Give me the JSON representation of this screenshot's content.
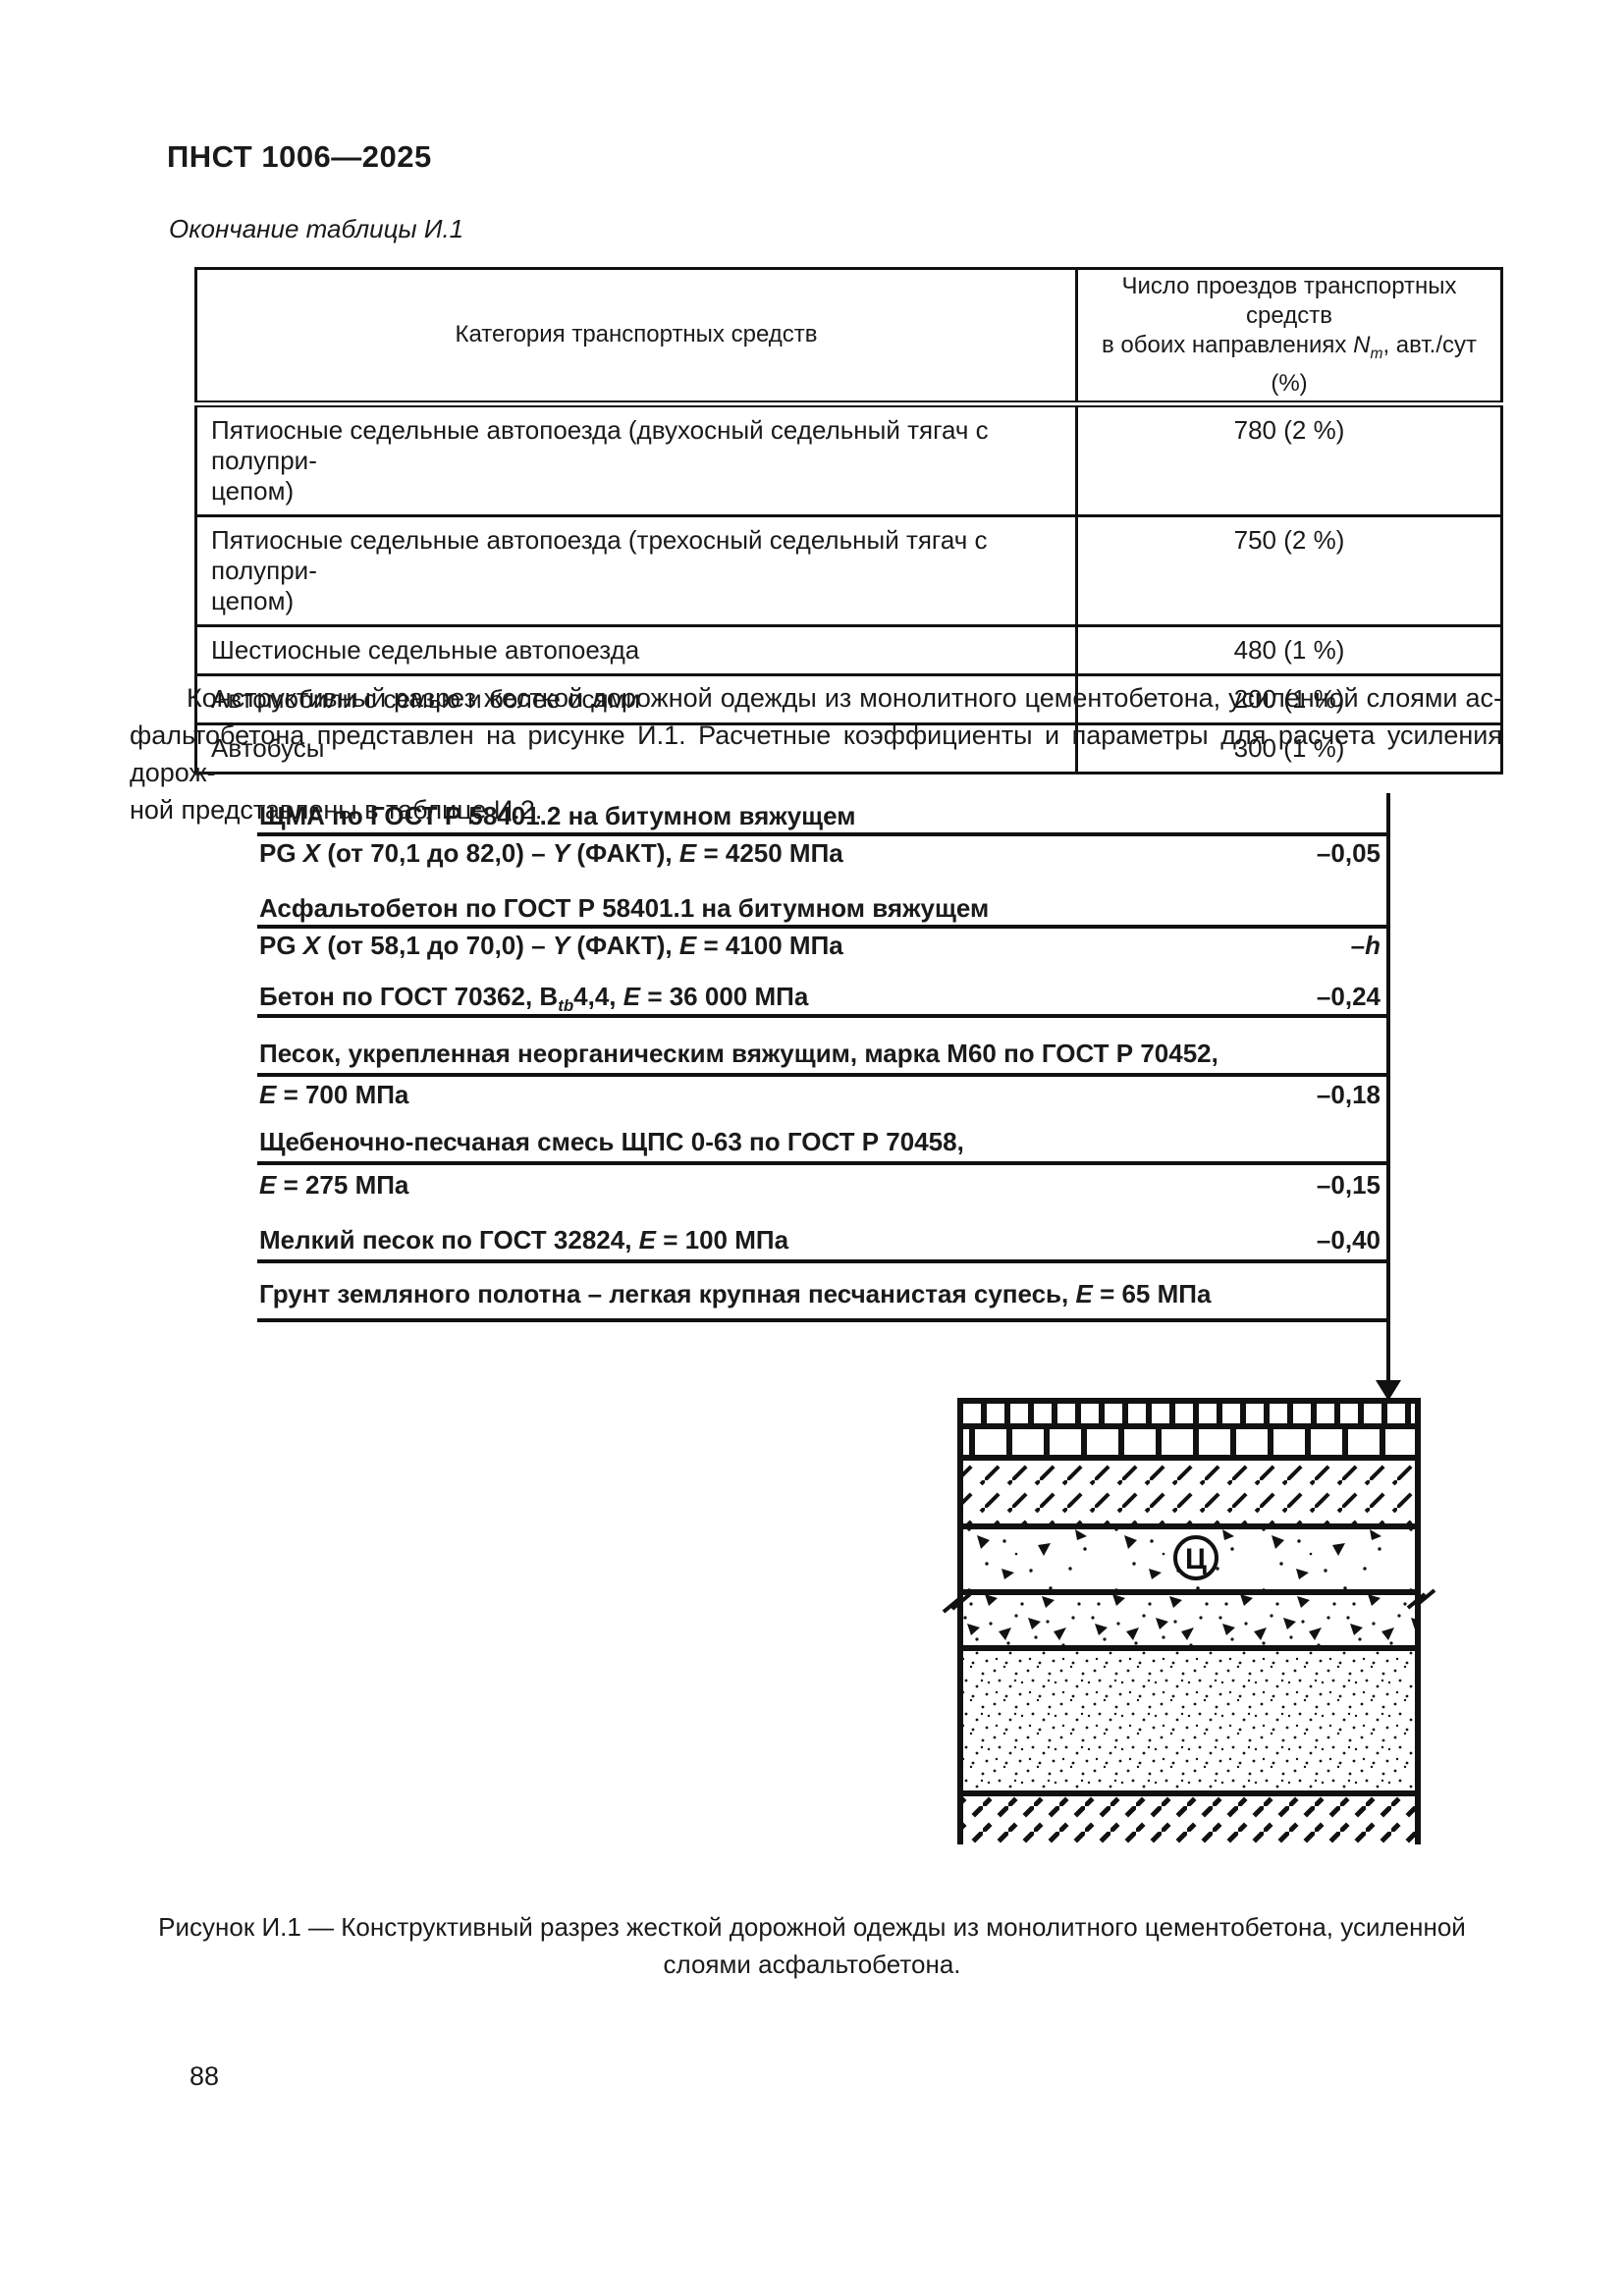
{
  "page": {
    "doc_code": "ПНСТ 1006—2025",
    "continuation_label": "Окончание таблицы И.1",
    "page_number": "88"
  },
  "table": {
    "col1_header": "Категория транспортных средств",
    "col2_header_segments": [
      {
        "t": "Число проездов транспортных средств"
      },
      {
        "br": true
      },
      {
        "t": "в обоих направлениях "
      },
      {
        "t": "N",
        "i": true
      },
      {
        "t": "m",
        "i": true,
        "sub": true
      },
      {
        "t": ", авт./сут (%)"
      }
    ],
    "rows": [
      {
        "category": [
          "Пятиосные седельные автопоезда (двухосный седельный тягач с полупри-",
          "цепом)"
        ],
        "value": "780 (2 %)"
      },
      {
        "category": [
          "Пятиосные седельные автопоезда (трехосный седельный тягач с полупри-",
          "цепом)"
        ],
        "value": "750 (2 %)"
      },
      {
        "category": [
          "Шестиосные седельные автопоезда"
        ],
        "value": "480 (1 %)"
      },
      {
        "category": [
          "Автомобили с семью и более осями"
        ],
        "value": "200 (1 %)"
      },
      {
        "category": [
          "Автобусы"
        ],
        "value": "300 (1 %)"
      }
    ]
  },
  "paragraph": {
    "line1": "Конструктивный разрез жесткой дорожной одежды из монолитного цементобетона, усиленной слоями ас-",
    "line2": "фальтобетона представлен на рисунке И.1. Расчетные коэффициенты и параметры для расчета усиления дорож-",
    "line3": "ной представлены в таблице И.2."
  },
  "diagram": {
    "lines": [
      {
        "segments": [
          {
            "t": "ЩМА по ГОСТ Р 58401.2 на битумном вяжущем"
          }
        ]
      },
      {
        "segments": [
          {
            "t": "PG "
          },
          {
            "t": "X",
            "i": true
          },
          {
            "t": " (от 70,1 до 82,0) – "
          },
          {
            "t": "Y",
            "i": true
          },
          {
            "t": " (ФАКТ), "
          },
          {
            "t": "E",
            "i": true
          },
          {
            "t": " = 4250 МПа"
          }
        ],
        "depth": [
          {
            "t": "–0,05"
          }
        ]
      },
      {
        "segments": [
          {
            "t": "Асфальтобетон по ГОСТ Р 58401.1 на битумном вяжущем"
          }
        ]
      },
      {
        "segments": [
          {
            "t": "PG "
          },
          {
            "t": "X",
            "i": true
          },
          {
            "t": " (от 58,1 до 70,0) – "
          },
          {
            "t": "Y",
            "i": true
          },
          {
            "t": " (ФАКТ), "
          },
          {
            "t": "E",
            "i": true
          },
          {
            "t": " = 4100 МПа"
          }
        ],
        "depth": [
          {
            "t": "–"
          },
          {
            "t": "h",
            "i": true
          }
        ]
      },
      {
        "segments": [
          {
            "t": "Бетон по ГОСТ 70362, В"
          },
          {
            "t": "tb",
            "i": true,
            "sub": true
          },
          {
            "t": "4,4, "
          },
          {
            "t": "E",
            "i": true
          },
          {
            "t": " = 36 000 МПа"
          }
        ],
        "depth": [
          {
            "t": "–0,24"
          }
        ]
      },
      {
        "segments": [
          {
            "t": "Песок, укрепленная неорганическим вяжущим, марка М60 по ГОСТ Р 70452,"
          }
        ]
      },
      {
        "segments": [
          {
            "t": "E",
            "i": true
          },
          {
            "t": " = 700 МПа"
          }
        ],
        "depth": [
          {
            "t": "–0,18"
          }
        ]
      },
      {
        "segments": [
          {
            "t": "Щебеночно-песчаная смесь ЩПС 0-63 по ГОСТ Р 70458,"
          }
        ]
      },
      {
        "segments": [
          {
            "t": "E",
            "i": true
          },
          {
            "t": " = 275 МПа"
          }
        ],
        "depth": [
          {
            "t": "–0,15"
          }
        ]
      },
      {
        "segments": [
          {
            "t": "Мелкий песок по ГОСТ 32824, "
          },
          {
            "t": "E",
            "i": true
          },
          {
            "t": " = 100 МПа"
          }
        ],
        "depth": [
          {
            "t": "–0,40"
          }
        ]
      },
      {
        "segments": [
          {
            "t": "Грунт земляного полотна – легкая крупная песчанистая супесь, "
          },
          {
            "t": "E",
            "i": true
          },
          {
            "t": " = 65 МПа"
          }
        ]
      }
    ]
  },
  "figure": {
    "cement_symbol": "Ц",
    "caption_line1": "Рисунок И.1 — Конструктивный разрез жесткой дорожной одежды из монолитного цементобетона, усиленной",
    "caption_line2": "слоями асфальтобетона."
  }
}
